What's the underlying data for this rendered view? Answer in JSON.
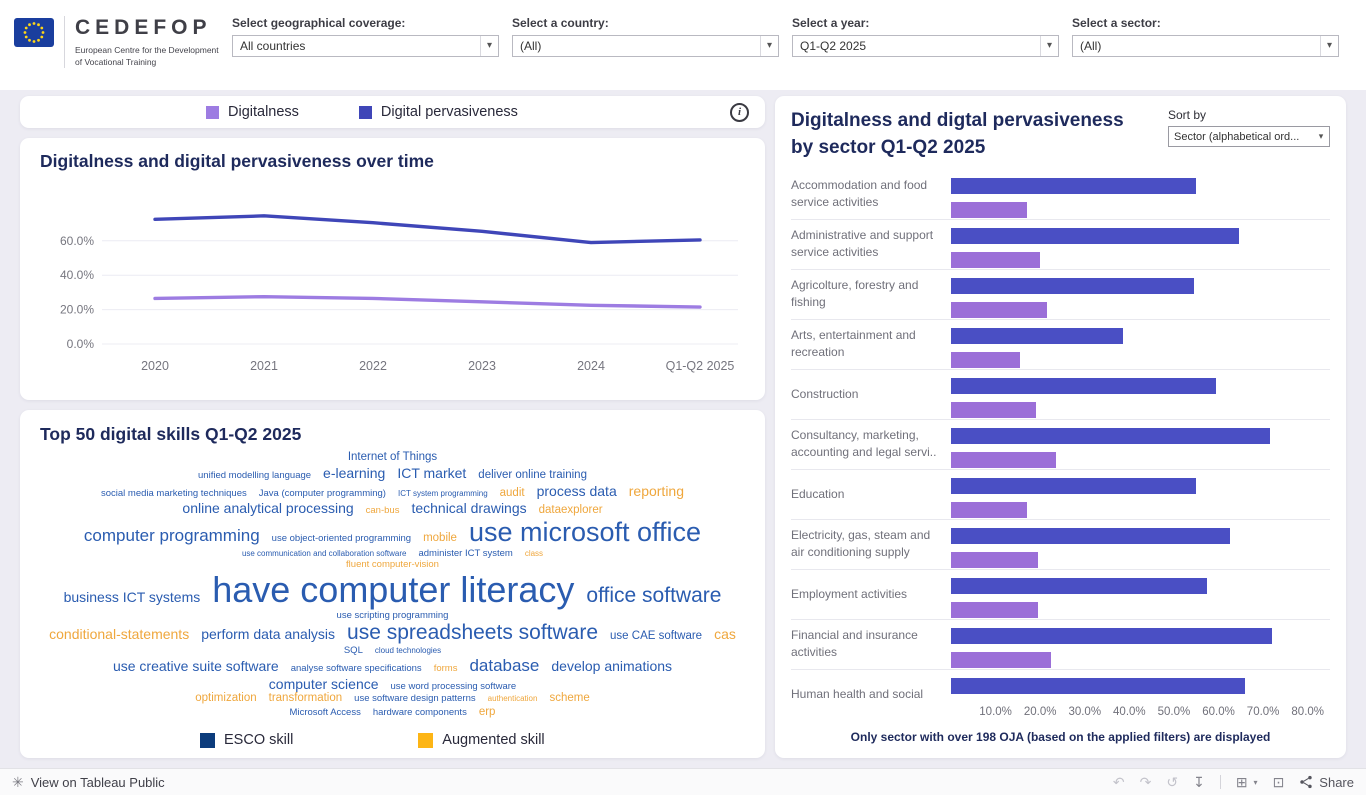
{
  "header": {
    "brand": "CEDEFOP",
    "brand_subtitle_line1": "European Centre for the Development",
    "brand_subtitle_line2": "of Vocational Training",
    "filters": [
      {
        "label": "Select geographical coverage:",
        "value": "All countries"
      },
      {
        "label": "Select a country:",
        "value": "(All)"
      },
      {
        "label": "Select a year:",
        "value": "Q1-Q2 2025"
      },
      {
        "label": "Select a sector:",
        "value": "(All)"
      }
    ]
  },
  "icons": {
    "caret": "▾",
    "info": "i",
    "tableau_logo": "✳",
    "undo": "↶",
    "redo": "↷",
    "reset": "↺",
    "download": "↧",
    "device": "⊞",
    "fullscreen": "⊡"
  },
  "legend": {
    "items": [
      {
        "label": "Digitalness",
        "color": "#9d7ce2"
      },
      {
        "label": "Digital pervasiveness",
        "color": "#3f46b8"
      }
    ]
  },
  "word_cloud": {
    "title": "Top 50 digital skills Q1-Q2 2025",
    "colors": {
      "esco": "#2a5cb0",
      "augmented": "#efa73d"
    },
    "legend": [
      {
        "label": "ESCO skill",
        "color": "#0c3c7c"
      },
      {
        "label": "Augmented skill",
        "color": "#fdb515"
      }
    ],
    "lines": [
      [
        {
          "t": "Internet of Things",
          "k": "e",
          "s": 3
        }
      ],
      [
        {
          "t": "unified modelling language",
          "k": "e",
          "s": 2
        },
        {
          "t": "e-learning",
          "k": "e",
          "s": 4
        },
        {
          "t": "ICT market",
          "k": "e",
          "s": 4
        },
        {
          "t": "deliver online training",
          "k": "e",
          "s": 3
        }
      ],
      [
        {
          "t": "social media marketing techniques",
          "k": "e",
          "s": 2
        },
        {
          "t": "Java (computer programming)",
          "k": "e",
          "s": 2
        },
        {
          "t": "ICT system programming",
          "k": "e",
          "s": 1
        },
        {
          "t": "audit",
          "k": "a",
          "s": 3
        },
        {
          "t": "process data",
          "k": "e",
          "s": 4
        },
        {
          "t": "reporting",
          "k": "a",
          "s": 4
        }
      ],
      [
        {
          "t": "online analytical processing",
          "k": "e",
          "s": 4
        },
        {
          "t": "can-bus",
          "k": "a",
          "s": 2
        },
        {
          "t": "technical drawings",
          "k": "e",
          "s": 4
        },
        {
          "t": "dataexplorer",
          "k": "a",
          "s": 3
        }
      ],
      [
        {
          "t": "computer programming",
          "k": "e",
          "s": 5
        },
        {
          "t": "use object-oriented programming",
          "k": "e",
          "s": 2
        },
        {
          "t": "mobile",
          "k": "a",
          "s": 3
        },
        {
          "t": "use microsoft office",
          "k": "e",
          "s": 7
        }
      ],
      [
        {
          "t": "use communication and collaboration software",
          "k": "e",
          "s": 1
        },
        {
          "t": "administer ICT system",
          "k": "e",
          "s": 2
        },
        {
          "t": "class",
          "k": "a",
          "s": 1
        }
      ],
      [
        {
          "t": "fluent computer-vision",
          "k": "a",
          "s": 2
        }
      ],
      [
        {
          "t": "business ICT systems",
          "k": "e",
          "s": 4
        },
        {
          "t": "have computer literacy",
          "k": "e",
          "s": 8
        },
        {
          "t": "office software",
          "k": "e",
          "s": 6
        }
      ],
      [
        {
          "t": "use scripting programming",
          "k": "e",
          "s": 2
        }
      ],
      [
        {
          "t": "conditional-statements",
          "k": "a",
          "s": 4
        },
        {
          "t": "perform data analysis",
          "k": "e",
          "s": 4
        },
        {
          "t": "use spreadsheets software",
          "k": "e",
          "s": 6
        },
        {
          "t": "use CAE software",
          "k": "e",
          "s": 3
        },
        {
          "t": "cas",
          "k": "a",
          "s": 4
        }
      ],
      [
        {
          "t": "SQL",
          "k": "e",
          "s": 2
        },
        {
          "t": "cloud technologies",
          "k": "e",
          "s": 1
        }
      ],
      [
        {
          "t": "use creative suite software",
          "k": "e",
          "s": 4
        },
        {
          "t": "analyse software specifications",
          "k": "e",
          "s": 2
        },
        {
          "t": "forms",
          "k": "a",
          "s": 2
        },
        {
          "t": "database",
          "k": "e",
          "s": 5
        },
        {
          "t": "develop animations",
          "k": "e",
          "s": 4
        }
      ],
      [
        {
          "t": "computer science",
          "k": "e",
          "s": 4
        },
        {
          "t": "use word processing software",
          "k": "e",
          "s": 2
        }
      ],
      [
        {
          "t": "optimization",
          "k": "a",
          "s": 3
        },
        {
          "t": "transformation",
          "k": "a",
          "s": 3
        },
        {
          "t": "use software design patterns",
          "k": "e",
          "s": 2
        },
        {
          "t": "authentication",
          "k": "a",
          "s": 1
        },
        {
          "t": "scheme",
          "k": "a",
          "s": 3
        }
      ],
      [
        {
          "t": "Microsoft Access",
          "k": "e",
          "s": 2
        },
        {
          "t": "hardware components",
          "k": "e",
          "s": 2
        },
        {
          "t": "erp",
          "k": "a",
          "s": 3
        }
      ]
    ]
  },
  "sector_panel": {
    "title_line1": "Digitalness and digtal pervasiveness",
    "title_line2": "by sector Q1-Q2 2025",
    "sort_by_label": "Sort by",
    "sort_value": "Sector (alphabetical ord...",
    "footnote": "Only sector with over 198 OJA (based on the applied filters) are displayed"
  },
  "chart_data": [
    {
      "type": "line",
      "title": "Digitalness and digital pervasiveness over time",
      "categories": [
        "2020",
        "2021",
        "2022",
        "2023",
        "2024",
        "Q1-Q2 2025"
      ],
      "series": [
        {
          "name": "Digitalness",
          "color": "#9d7ce2",
          "values": [
            26.5,
            27.5,
            26.5,
            24.5,
            22.5,
            21.5
          ]
        },
        {
          "name": "Digital pervasiveness",
          "color": "#3f46b8",
          "values": [
            72.5,
            74.5,
            70.5,
            65.5,
            59.0,
            60.5
          ]
        }
      ],
      "yticks": [
        0,
        20,
        40,
        60
      ],
      "ylim": [
        0,
        80
      ],
      "ytick_format": "percent",
      "grid": true,
      "legend_position": "top-external"
    },
    {
      "type": "bar",
      "orientation": "horizontal",
      "title": "Digitalness and digtal pervasiveness by sector Q1-Q2 2025",
      "categories": [
        "Accommodation and food service activities",
        "Administrative and support service activities",
        "Agricolture, forestry and fishing",
        "Arts, entertainment and recreation",
        "Construction",
        "Consultancy, marketing, accounting and legal servi..",
        "Education",
        "Electricity, gas, steam and air conditioning supply",
        "Employment activities",
        "Financial and insurance activities",
        "Human health and social"
      ],
      "series": [
        {
          "name": "Digital pervasiveness",
          "color": "#4a4fc4",
          "values": [
            55,
            64.5,
            54.5,
            38.5,
            59.5,
            71.5,
            55,
            62.5,
            57.5,
            72,
            66
          ]
        },
        {
          "name": "Digitalness",
          "color": "#9b6fd8",
          "values": [
            17,
            20,
            21.5,
            15.5,
            19,
            23.5,
            17,
            19.5,
            19.5,
            22.5,
            null
          ]
        }
      ],
      "xticks": [
        10,
        20,
        30,
        40,
        50,
        60,
        70,
        80
      ],
      "xlim": [
        0,
        85
      ],
      "xtick_format": "percent"
    }
  ],
  "footer": {
    "view_label": "View on Tableau Public",
    "share_label": "Share"
  }
}
